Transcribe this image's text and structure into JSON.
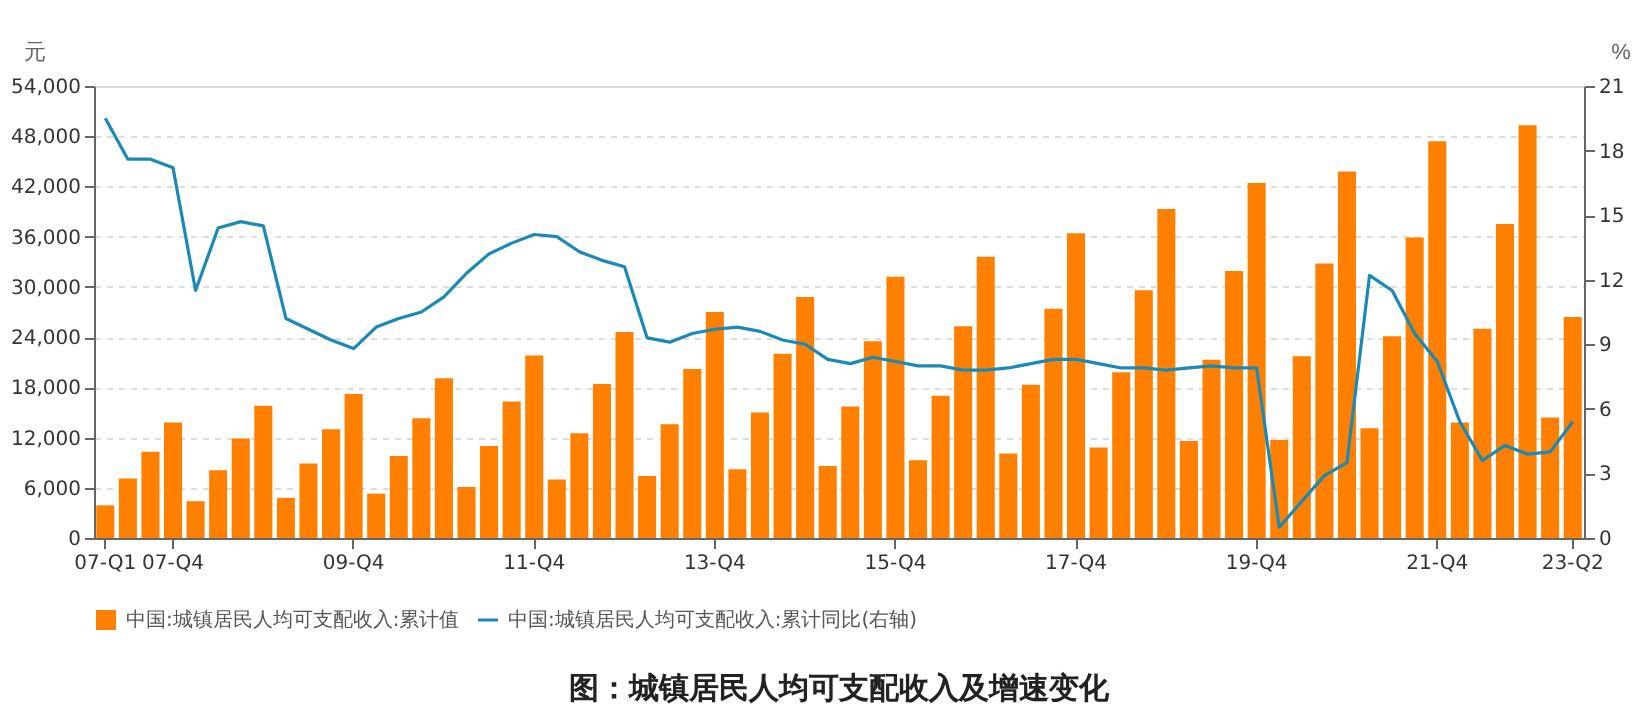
{
  "chart_data": {
    "type": "bar",
    "title": "图：城镇居民人均可支配收入及增速变化",
    "ylabel": "元",
    "y2label": "%",
    "categories": [
      "07-Q1",
      null,
      null,
      "07-Q4",
      null,
      null,
      null,
      null,
      null,
      null,
      null,
      "09-Q4",
      null,
      null,
      null,
      null,
      null,
      null,
      null,
      "11-Q4",
      null,
      null,
      null,
      null,
      null,
      null,
      null,
      "13-Q4",
      null,
      null,
      null,
      null,
      null,
      null,
      null,
      "15-Q4",
      null,
      null,
      null,
      null,
      null,
      null,
      null,
      "17-Q4",
      null,
      null,
      null,
      null,
      null,
      null,
      null,
      "19-Q4",
      null,
      null,
      null,
      null,
      null,
      null,
      null,
      "21-Q4",
      null,
      null,
      null,
      null,
      null,
      "23-Q2"
    ],
    "series": [
      {
        "name": "中国:城镇居民人均可支配收入:累计同比(右轴)",
        "type": "line",
        "axis": "y2",
        "color": "#1a8ab5",
        "values": [
          19.5,
          17.6,
          17.6,
          17.2,
          11.5,
          14.4,
          14.7,
          14.5,
          10.2,
          9.7,
          9.2,
          8.8,
          9.8,
          10.2,
          10.5,
          11.2,
          12.3,
          13.2,
          13.7,
          14.1,
          14.0,
          13.3,
          12.9,
          12.6,
          9.3,
          9.1,
          9.5,
          9.7,
          9.8,
          9.6,
          9.2,
          9.0,
          8.3,
          8.1,
          8.4,
          8.2,
          8.0,
          8.0,
          7.8,
          7.8,
          7.9,
          8.1,
          8.3,
          8.3,
          8.1,
          7.9,
          7.9,
          7.8,
          7.9,
          8.0,
          7.9,
          7.9,
          0.5,
          1.7,
          2.9,
          3.5,
          12.2,
          11.5,
          9.5,
          8.2,
          5.4,
          3.6,
          4.3,
          3.9,
          4.0,
          5.4
        ]
      },
      {
        "name": "中国:城镇居民人均可支配收入:累计值",
        "color": "#ff8000",
        "values": [
          3900,
          7100,
          10300,
          13800,
          4400,
          8100,
          11900,
          15800,
          4800,
          8900,
          13000,
          17200,
          5300,
          9800,
          14300,
          19100,
          6100,
          11000,
          16300,
          21800,
          7000,
          12500,
          18400,
          24600,
          7400,
          13600,
          20200,
          27000,
          8200,
          15000,
          22000,
          28800,
          8600,
          15700,
          23500,
          31200,
          9300,
          17000,
          25300,
          33600,
          10100,
          18300,
          27400,
          36400,
          10800,
          19800,
          29600,
          39300,
          11600,
          21300,
          31900,
          42400,
          11700,
          21700,
          32800,
          43800,
          13100,
          24100,
          35900,
          47400,
          13800,
          25000,
          37500,
          49300,
          14400,
          26400
        ]
      }
    ],
    "ylim": [
      0,
      54000
    ],
    "yticks": [
      0,
      {
        "value": 6000,
        "label": "6,000"
      },
      {
        "value": 12000,
        "label": "12,000"
      },
      {
        "value": 18000,
        "label": "18,000"
      },
      {
        "value": 24000,
        "label": "24,000"
      },
      {
        "value": 30000,
        "label": "30,000"
      },
      {
        "value": 36000,
        "label": "36,000"
      },
      {
        "value": 42000,
        "label": "42,000"
      },
      {
        "value": 48000,
        "label": "48,000"
      },
      {
        "value": 54000,
        "label": "54,000"
      }
    ],
    "y2lim": [
      0,
      21
    ],
    "y2ticks": [
      0,
      3,
      6,
      9,
      12,
      15,
      18,
      21
    ],
    "grid": "y",
    "legend": "bottom"
  }
}
